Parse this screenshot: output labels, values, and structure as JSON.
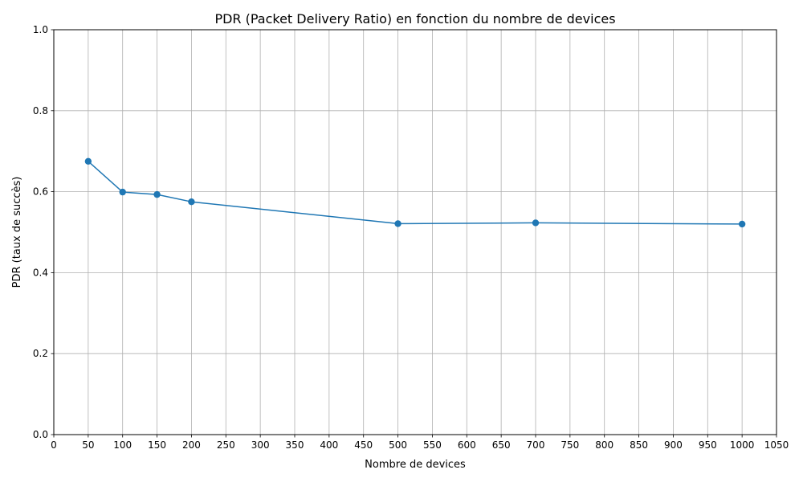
{
  "chart_data": {
    "type": "line",
    "title": "PDR (Packet Delivery Ratio) en fonction du nombre de devices",
    "xlabel": "Nombre de devices",
    "ylabel": "PDR (taux de succès)",
    "xlim": [
      0,
      1050
    ],
    "ylim": [
      0.0,
      1.0
    ],
    "x_ticks": [
      "0",
      "50",
      "100",
      "150",
      "200",
      "250",
      "300",
      "350",
      "400",
      "450",
      "500",
      "550",
      "600",
      "650",
      "700",
      "750",
      "800",
      "850",
      "900",
      "950",
      "1000",
      "1050"
    ],
    "y_ticks": [
      "0.0",
      "0.2",
      "0.4",
      "0.6",
      "0.8",
      "1.0"
    ],
    "grid": true,
    "marker": "circle",
    "series": [
      {
        "color": "#1f77b4",
        "x": [
          50,
          100,
          150,
          200,
          500,
          700,
          1000
        ],
        "y": [
          0.675,
          0.599,
          0.593,
          0.575,
          0.521,
          0.523,
          0.52
        ]
      }
    ]
  }
}
